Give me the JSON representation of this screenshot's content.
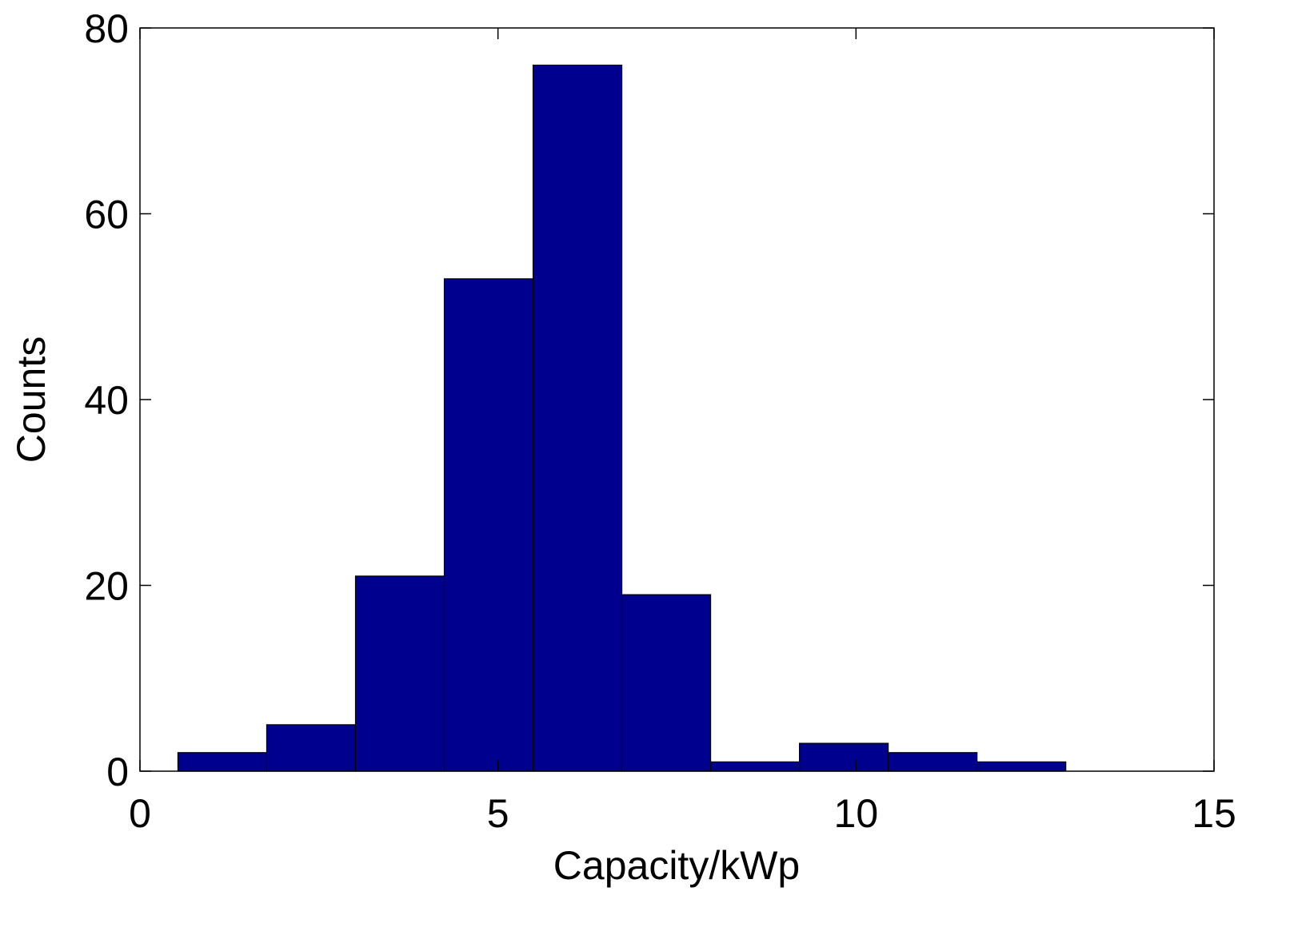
{
  "chart_data": {
    "type": "histogram",
    "xlabel": "Capacity/kWp",
    "ylabel": "Counts",
    "bins": [
      0.53,
      1.77,
      3.01,
      4.25,
      5.49,
      6.73,
      7.97,
      9.21,
      10.45,
      11.69,
      12.93
    ],
    "counts": [
      2,
      5,
      21,
      53,
      76,
      19,
      1,
      3,
      2,
      1
    ],
    "color": "#00008f",
    "xlim": [
      0,
      15
    ],
    "ylim": [
      0,
      80
    ],
    "xticks": [
      0,
      5,
      10,
      15
    ],
    "yticks": [
      0,
      20,
      40,
      60,
      80
    ]
  }
}
